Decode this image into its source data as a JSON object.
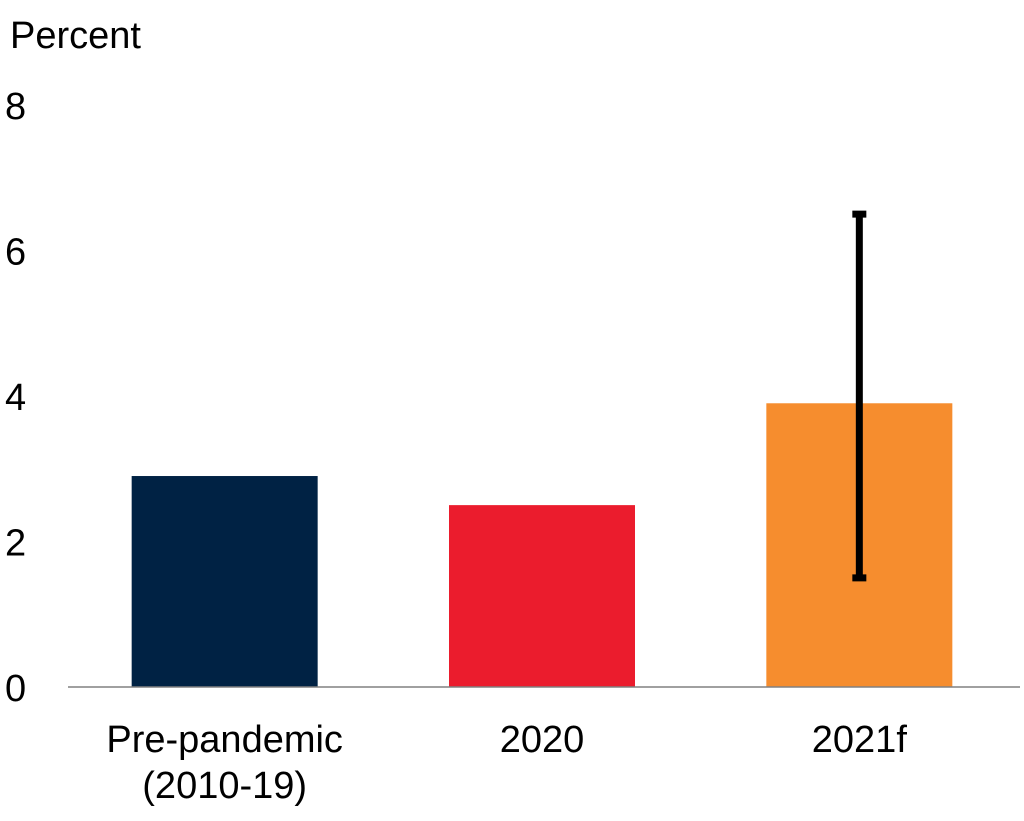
{
  "chart_data": {
    "type": "bar",
    "title": "",
    "ylabel": "Percent",
    "xlabel": "",
    "ylim": [
      0,
      8
    ],
    "yticks": [
      0,
      2,
      4,
      6,
      8
    ],
    "grid": false,
    "categories": [
      [
        "Pre-pandemic",
        "(2010-19)"
      ],
      [
        "2020"
      ],
      [
        "2021f"
      ]
    ],
    "values": [
      2.9,
      2.5,
      3.9
    ],
    "error_bars": [
      null,
      null,
      {
        "low": 1.5,
        "high": 6.5
      }
    ],
    "colors": [
      "#002244",
      "#EB1C2D",
      "#F68D2E"
    ]
  }
}
